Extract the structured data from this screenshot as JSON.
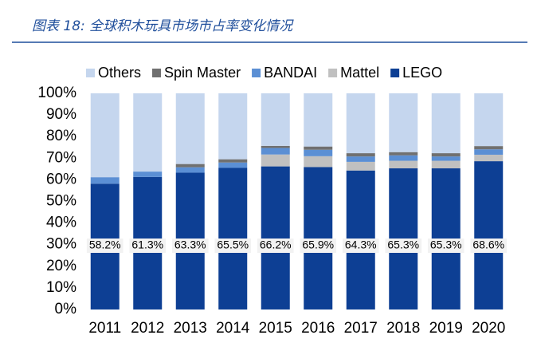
{
  "chart_data": {
    "type": "stacked_bar",
    "title": "图表 18: 全球积木玩具市场市占率变化情况",
    "categories": [
      "2011",
      "2012",
      "2013",
      "2014",
      "2015",
      "2016",
      "2017",
      "2018",
      "2019",
      "2020"
    ],
    "series": [
      {
        "name": "LEGO",
        "color": "#0d3f94",
        "values": [
          58.2,
          61.3,
          63.3,
          65.5,
          66.2,
          65.9,
          64.3,
          65.3,
          65.3,
          68.6
        ],
        "value_labels": [
          "58.2%",
          "61.3%",
          "63.3%",
          "65.5%",
          "66.2%",
          "65.9%",
          "64.3%",
          "65.3%",
          "65.3%",
          "68.6%"
        ]
      },
      {
        "name": "Mattel",
        "color": "#c0c0c0",
        "values": [
          0,
          0,
          0,
          0,
          5.5,
          5,
          4,
          3.5,
          3.5,
          3
        ]
      },
      {
        "name": "BANDAI",
        "color": "#5b8fd4",
        "values": [
          3,
          2.5,
          2.5,
          2.5,
          3,
          3,
          2.5,
          2.5,
          2,
          2.5
        ]
      },
      {
        "name": "Spin Master",
        "color": "#707070",
        "values": [
          0,
          0,
          1.5,
          1.5,
          1,
          1.5,
          1.5,
          1.5,
          1.5,
          1.5
        ]
      },
      {
        "name": "Others",
        "color": "#c5d6ee",
        "values": [
          38.8,
          36.2,
          32.7,
          30.5,
          24.3,
          24.6,
          27.7,
          27.2,
          27.7,
          24.4
        ]
      }
    ],
    "ylim": [
      0,
      100
    ],
    "yticks": [
      {
        "value": 0,
        "label": "0%"
      },
      {
        "value": 10,
        "label": "10%"
      },
      {
        "value": 20,
        "label": "20%"
      },
      {
        "value": 30,
        "label": "30%"
      },
      {
        "value": 40,
        "label": "40%"
      },
      {
        "value": 50,
        "label": "50%"
      },
      {
        "value": 60,
        "label": "60%"
      },
      {
        "value": 70,
        "label": "70%"
      },
      {
        "value": 80,
        "label": "80%"
      },
      {
        "value": 90,
        "label": "90%"
      },
      {
        "value": 100,
        "label": "100%"
      }
    ],
    "legend": "top"
  }
}
